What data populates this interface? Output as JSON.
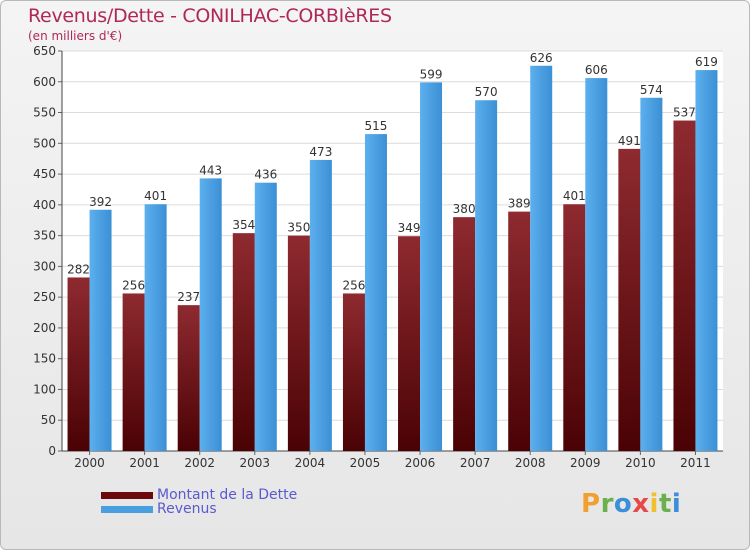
{
  "chart_data": {
    "type": "bar",
    "title": "Revenus/Dette - CONILHAC-CORBIèRES",
    "subtitle": "(en milliers d'€)",
    "categories": [
      "2000",
      "2001",
      "2002",
      "2003",
      "2004",
      "2005",
      "2006",
      "2007",
      "2008",
      "2009",
      "2010",
      "2011"
    ],
    "series": [
      {
        "name": "Montant de la Dette",
        "color": "#7a0f12",
        "values": [
          282,
          256,
          237,
          354,
          350,
          256,
          349,
          380,
          389,
          401,
          491,
          537
        ]
      },
      {
        "name": "Revenus",
        "color": "#4a9fe0",
        "values": [
          392,
          401,
          443,
          436,
          473,
          515,
          599,
          570,
          626,
          606,
          574,
          619
        ]
      }
    ],
    "ylim": [
      0,
      650
    ],
    "yticks": [
      0,
      50,
      100,
      150,
      200,
      250,
      300,
      350,
      400,
      450,
      500,
      550,
      600,
      650
    ],
    "grid": true,
    "legend": "bottom-left"
  },
  "logo": {
    "text": "Proxiti"
  }
}
